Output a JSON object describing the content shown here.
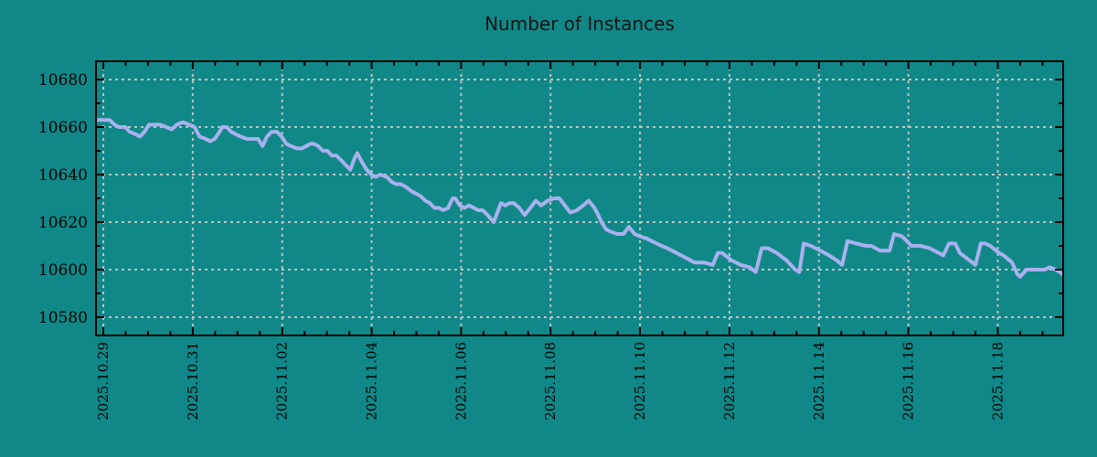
{
  "title": "Number of Instances",
  "colors": {
    "background": "#118888",
    "series_line": "#a9b1ee",
    "grid": "#bcc4c4",
    "axis": "#000000",
    "title_text": "#141414",
    "tick_text": "#000000"
  },
  "chart_data": {
    "type": "line",
    "title": "Number of Instances",
    "legend": "none",
    "grid": "dashed gridlines at major ticks, both axes",
    "x_axis": {
      "label": "",
      "tick_labels": [
        "2025.10.29",
        "2025.10.31",
        "2025.11.02",
        "2025.11.04",
        "2025.11.06",
        "2025.11.08",
        "2025.11.10",
        "2025.11.12",
        "2025.11.14",
        "2025.11.16",
        "2025.11.18"
      ],
      "tick_day_offsets": [
        0,
        2,
        4,
        6,
        8,
        10,
        12,
        14,
        16,
        18,
        20
      ],
      "range_days": [
        -0.164,
        21.462
      ],
      "minor_tick_step_days": 0.5,
      "tick_label_rotation_deg": 90
    },
    "y_axis": {
      "label": "",
      "ticks": [
        10580,
        10600,
        10620,
        10640,
        10660,
        10680
      ],
      "range": [
        10572.3,
        10687.7
      ],
      "minor_tick_step": 10
    },
    "series": [
      {
        "name": "instances",
        "points_format": "[days_since_2025-10-29, value]",
        "points": [
          [
            -0.16,
            10663
          ],
          [
            0.0,
            10663
          ],
          [
            0.14,
            10663
          ],
          [
            0.25,
            10661
          ],
          [
            0.35,
            10660
          ],
          [
            0.49,
            10660
          ],
          [
            0.59,
            10658
          ],
          [
            0.72,
            10657
          ],
          [
            0.82,
            10656
          ],
          [
            0.92,
            10658
          ],
          [
            1.02,
            10661
          ],
          [
            1.17,
            10661
          ],
          [
            1.27,
            10661
          ],
          [
            1.41,
            10660
          ],
          [
            1.53,
            10659
          ],
          [
            1.64,
            10661
          ],
          [
            1.78,
            10662
          ],
          [
            1.92,
            10661
          ],
          [
            2.04,
            10660
          ],
          [
            2.15,
            10656
          ],
          [
            2.29,
            10655
          ],
          [
            2.39,
            10654
          ],
          [
            2.49,
            10655
          ],
          [
            2.6,
            10658
          ],
          [
            2.66,
            10660
          ],
          [
            2.76,
            10660
          ],
          [
            2.86,
            10658
          ],
          [
            2.96,
            10657
          ],
          [
            3.07,
            10656
          ],
          [
            3.21,
            10655
          ],
          [
            3.35,
            10655
          ],
          [
            3.46,
            10655
          ],
          [
            3.56,
            10652
          ],
          [
            3.66,
            10656
          ],
          [
            3.76,
            10658
          ],
          [
            3.88,
            10658
          ],
          [
            3.99,
            10656
          ],
          [
            4.09,
            10653
          ],
          [
            4.19,
            10652
          ],
          [
            4.33,
            10651
          ],
          [
            4.44,
            10651
          ],
          [
            4.54,
            10652
          ],
          [
            4.64,
            10653
          ],
          [
            4.7,
            10653
          ],
          [
            4.8,
            10652
          ],
          [
            4.91,
            10650
          ],
          [
            5.01,
            10650
          ],
          [
            5.11,
            10648
          ],
          [
            5.21,
            10648
          ],
          [
            5.32,
            10646
          ],
          [
            5.42,
            10644
          ],
          [
            5.52,
            10642
          ],
          [
            5.62,
            10647
          ],
          [
            5.68,
            10649
          ],
          [
            5.79,
            10645
          ],
          [
            5.89,
            10642
          ],
          [
            5.99,
            10640
          ],
          [
            6.09,
            10639
          ],
          [
            6.19,
            10640
          ],
          [
            6.34,
            10639
          ],
          [
            6.44,
            10637
          ],
          [
            6.54,
            10636
          ],
          [
            6.64,
            10636
          ],
          [
            6.75,
            10635
          ],
          [
            6.89,
            10633
          ],
          [
            6.99,
            10632
          ],
          [
            7.09,
            10631
          ],
          [
            7.2,
            10629
          ],
          [
            7.3,
            10628
          ],
          [
            7.4,
            10626
          ],
          [
            7.5,
            10626
          ],
          [
            7.6,
            10625
          ],
          [
            7.71,
            10626
          ],
          [
            7.81,
            10630
          ],
          [
            7.87,
            10630
          ],
          [
            7.97,
            10627
          ],
          [
            8.07,
            10626
          ],
          [
            8.18,
            10627
          ],
          [
            8.28,
            10626
          ],
          [
            8.38,
            10625
          ],
          [
            8.48,
            10625
          ],
          [
            8.59,
            10623
          ],
          [
            8.73,
            10620
          ],
          [
            8.83,
            10625
          ],
          [
            8.89,
            10628
          ],
          [
            8.99,
            10627
          ],
          [
            9.08,
            10628
          ],
          [
            9.18,
            10628
          ],
          [
            9.3,
            10626
          ],
          [
            9.42,
            10623
          ],
          [
            9.55,
            10626
          ],
          [
            9.67,
            10629
          ],
          [
            9.79,
            10627
          ],
          [
            9.93,
            10629
          ],
          [
            10.08,
            10630
          ],
          [
            10.2,
            10630
          ],
          [
            10.32,
            10627
          ],
          [
            10.44,
            10624
          ],
          [
            10.59,
            10625
          ],
          [
            10.73,
            10627
          ],
          [
            10.85,
            10629
          ],
          [
            10.98,
            10626
          ],
          [
            11.04,
            10624
          ],
          [
            11.14,
            10620
          ],
          [
            11.24,
            10617
          ],
          [
            11.34,
            10616
          ],
          [
            11.49,
            10615
          ],
          [
            11.63,
            10615
          ],
          [
            11.75,
            10618
          ],
          [
            11.88,
            10615
          ],
          [
            12.0,
            10614
          ],
          [
            12.16,
            10613
          ],
          [
            12.37,
            10611
          ],
          [
            12.61,
            10609
          ],
          [
            12.82,
            10607
          ],
          [
            13.02,
            10605
          ],
          [
            13.22,
            10603
          ],
          [
            13.43,
            10603
          ],
          [
            13.63,
            10602
          ],
          [
            13.74,
            10607
          ],
          [
            13.84,
            10607
          ],
          [
            14.04,
            10604
          ],
          [
            14.25,
            10602
          ],
          [
            14.45,
            10601
          ],
          [
            14.59,
            10599
          ],
          [
            14.72,
            10609
          ],
          [
            14.86,
            10609
          ],
          [
            15.06,
            10607
          ],
          [
            15.27,
            10604
          ],
          [
            15.47,
            10600
          ],
          [
            15.56,
            10599
          ],
          [
            15.66,
            10611
          ],
          [
            15.82,
            10610
          ],
          [
            16.03,
            10608
          ],
          [
            16.23,
            10606
          ],
          [
            16.39,
            10604
          ],
          [
            16.52,
            10602
          ],
          [
            16.64,
            10612
          ],
          [
            16.84,
            10611
          ],
          [
            17.05,
            10610
          ],
          [
            17.17,
            10610
          ],
          [
            17.37,
            10608
          ],
          [
            17.58,
            10608
          ],
          [
            17.68,
            10615
          ],
          [
            17.86,
            10614
          ],
          [
            18.07,
            10610
          ],
          [
            18.27,
            10610
          ],
          [
            18.48,
            10609
          ],
          [
            18.68,
            10607
          ],
          [
            18.78,
            10606
          ],
          [
            18.91,
            10611
          ],
          [
            19.05,
            10611
          ],
          [
            19.15,
            10607
          ],
          [
            19.36,
            10604
          ],
          [
            19.5,
            10602
          ],
          [
            19.62,
            10611
          ],
          [
            19.72,
            10611
          ],
          [
            19.83,
            10610
          ],
          [
            20.03,
            10607
          ],
          [
            20.13,
            10606
          ],
          [
            20.32,
            10603
          ],
          [
            20.44,
            10598
          ],
          [
            20.5,
            10597
          ],
          [
            20.64,
            10600
          ],
          [
            20.85,
            10600
          ],
          [
            21.05,
            10600
          ],
          [
            21.16,
            10601
          ],
          [
            21.3,
            10600
          ],
          [
            21.46,
            10598
          ]
        ]
      }
    ]
  }
}
